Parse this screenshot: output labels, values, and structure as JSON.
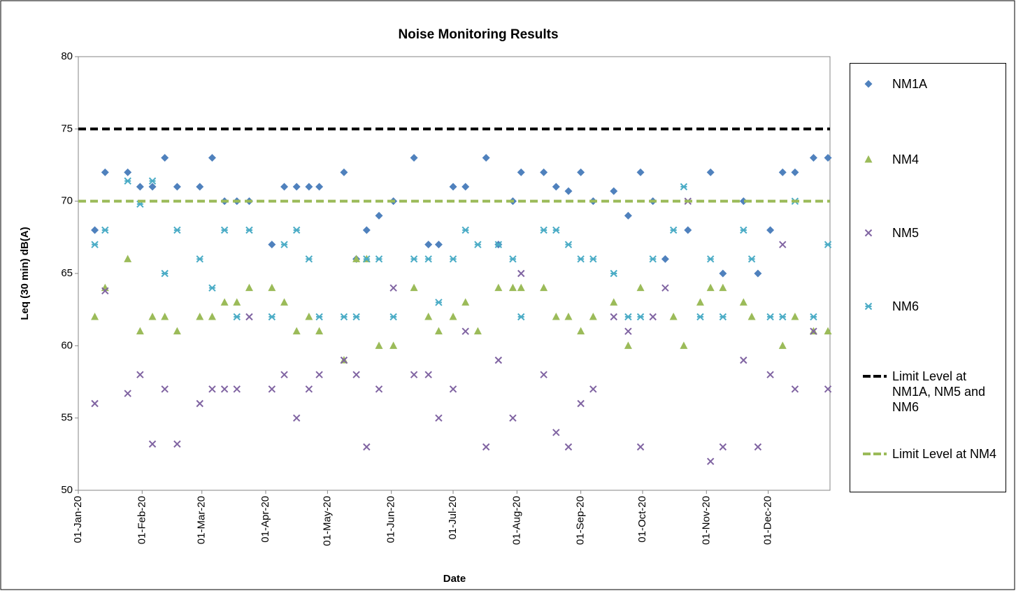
{
  "chart_data": {
    "type": "scatter",
    "title": "Noise Monitoring Results",
    "x_label": "Date",
    "y_label": "Leq (30 min) dB(A)",
    "x": [
      "2020-01-09",
      "2020-01-14",
      "2020-01-25",
      "2020-01-31",
      "2020-02-06",
      "2020-02-12",
      "2020-02-18",
      "2020-02-29",
      "2020-03-06",
      "2020-03-12",
      "2020-03-18",
      "2020-03-24",
      "2020-04-04",
      "2020-04-10",
      "2020-04-16",
      "2020-04-22",
      "2020-04-27",
      "2020-05-09",
      "2020-05-15",
      "2020-05-20",
      "2020-05-26",
      "2020-06-02",
      "2020-06-12",
      "2020-06-19",
      "2020-06-24",
      "2020-07-01",
      "2020-07-07",
      "2020-07-13",
      "2020-07-17",
      "2020-07-23",
      "2020-07-30",
      "2020-08-03",
      "2020-08-14",
      "2020-08-20",
      "2020-08-26",
      "2020-09-01",
      "2020-09-07",
      "2020-09-17",
      "2020-09-24",
      "2020-09-30",
      "2020-10-06",
      "2020-10-12",
      "2020-10-16",
      "2020-10-21",
      "2020-10-23",
      "2020-10-29",
      "2020-11-03",
      "2020-11-09",
      "2020-11-19",
      "2020-11-23",
      "2020-11-26",
      "2020-12-02",
      "2020-12-08",
      "2020-12-14",
      "2020-12-23",
      "2020-12-30"
    ],
    "series": [
      {
        "name": "NM1A",
        "color": "#4f81bd",
        "marker": "diamond",
        "values": [
          68,
          72,
          72,
          71,
          71,
          73,
          71,
          71,
          73,
          70,
          70,
          70,
          67,
          71,
          71,
          71,
          71,
          72,
          66,
          68,
          69,
          70,
          73,
          67,
          67,
          71,
          71,
          null,
          73,
          67,
          70,
          72,
          72,
          71,
          70.7,
          72,
          70,
          70.7,
          69,
          72,
          70,
          66,
          null,
          null,
          68,
          null,
          72,
          65,
          70,
          null,
          65,
          68,
          72,
          72,
          73,
          73
        ]
      },
      {
        "name": "NM4",
        "color": "#9bbb59",
        "marker": "triangle",
        "values": [
          62,
          64,
          66,
          61,
          62,
          62,
          61,
          62,
          62,
          63,
          63,
          64,
          64,
          63,
          61,
          62,
          61,
          59,
          66,
          66,
          60,
          60,
          64,
          62,
          61,
          62,
          63,
          61,
          null,
          64,
          64,
          64,
          64,
          62,
          62,
          61,
          62,
          63,
          60,
          64,
          null,
          null,
          62,
          60,
          null,
          63,
          64,
          64,
          63,
          62,
          null,
          null,
          60,
          62,
          61,
          61
        ]
      },
      {
        "name": "NM5",
        "color": "#8064a2",
        "marker": "x",
        "values": [
          56,
          63.8,
          56.7,
          58,
          53.2,
          57,
          53.2,
          56,
          57,
          57,
          57,
          62,
          57,
          58,
          55,
          57,
          58,
          59,
          58,
          53,
          57,
          64,
          58,
          58,
          55,
          57,
          61,
          null,
          53,
          59,
          55,
          65,
          58,
          54,
          53,
          56,
          57,
          62,
          61,
          53,
          62,
          64,
          null,
          null,
          70,
          null,
          52,
          53,
          59,
          null,
          53,
          58,
          67,
          57,
          61,
          57
        ]
      },
      {
        "name": "NM6",
        "color": "#4bacc6",
        "marker": "star",
        "values": [
          67,
          68,
          71.4,
          69.8,
          71.4,
          65,
          68,
          66,
          64,
          68,
          62,
          68,
          62,
          67,
          68,
          66,
          62,
          62,
          62,
          66,
          66,
          62,
          66,
          66,
          63,
          66,
          68,
          67,
          null,
          67,
          66,
          62,
          68,
          68,
          67,
          66,
          66,
          65,
          62,
          62,
          66,
          null,
          68,
          71,
          null,
          62,
          66,
          62,
          68,
          66,
          null,
          62,
          62,
          70,
          62,
          67
        ]
      },
      {
        "name": "Limit Level at NM1A, NM5 and NM6",
        "color": "#000000",
        "marker": "dashed-line",
        "x": [
          "2020-01-01",
          "2020-12-31"
        ],
        "values": [
          75,
          75
        ]
      },
      {
        "name": "Limit Level at NM4",
        "color": "#9bbb59",
        "marker": "dashed-line",
        "x": [
          "2020-01-01",
          "2020-12-31"
        ],
        "values": [
          70,
          70
        ]
      }
    ],
    "xlim": [
      "2020-01-01",
      "2020-12-31"
    ],
    "xticks": [
      {
        "value": "2020-01-01",
        "label": "01-Jan-20"
      },
      {
        "value": "2020-02-01",
        "label": "01-Feb-20"
      },
      {
        "value": "2020-03-01",
        "label": "01-Mar-20"
      },
      {
        "value": "2020-04-01",
        "label": "01-Apr-20"
      },
      {
        "value": "2020-05-01",
        "label": "01-May-20"
      },
      {
        "value": "2020-06-01",
        "label": "01-Jun-20"
      },
      {
        "value": "2020-07-01",
        "label": "01-Jul-20"
      },
      {
        "value": "2020-08-01",
        "label": "01-Aug-20"
      },
      {
        "value": "2020-09-01",
        "label": "01-Sep-20"
      },
      {
        "value": "2020-10-01",
        "label": "01-Oct-20"
      },
      {
        "value": "2020-11-01",
        "label": "01-Nov-20"
      },
      {
        "value": "2020-12-01",
        "label": "01-Dec-20"
      }
    ],
    "ylim": [
      50,
      80
    ],
    "yticks": [
      50,
      55,
      60,
      65,
      70,
      75,
      80
    ],
    "grid": false,
    "legend": "right"
  }
}
